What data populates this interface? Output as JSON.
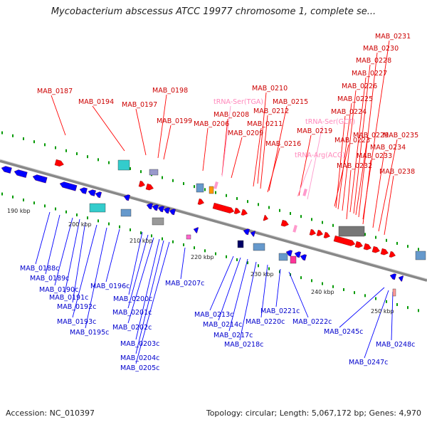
{
  "title": "Mycobacterium abscessus ATCC 19977 chromosome 1, complete se...",
  "footer": {
    "accession": "Accession: NC_010397",
    "stats": "Topology: circular; Length: 5,067,172 bp; Genes: 4,970"
  },
  "colors": {
    "forward_gene": "#ff0000",
    "reverse_gene": "#0000ff",
    "trna": "#ff99cc",
    "backbone": "#888888",
    "tick": "#009900"
  },
  "scale_ticks": [
    "190 kbp",
    "200 kbp",
    "210 kbp",
    "220 kbp",
    "230 kbp",
    "240 kbp",
    "250 kbp"
  ],
  "forward_labels": [
    "MAB_0187",
    "MAB_0194",
    "MAB_0197",
    "MAB_0198",
    "MAB_0199",
    "MAB_0206",
    "MAB_0208",
    "MAB_0209",
    "MAB_0210",
    "MAB_0211",
    "MAB_0212",
    "MAB_0215",
    "MAB_0216",
    "MAB_0219",
    "MAB_0223",
    "MAB_0224",
    "MAB_0225",
    "MAB_0226",
    "MAB_0227",
    "MAB_0228",
    "MAB_0229",
    "MAB_0230",
    "MAB_0231",
    "MAB_0232",
    "MAB_0233",
    "MAB_0234",
    "MAB_0235",
    "MAB_0238"
  ],
  "trna_labels": [
    "tRNA-Ser(TGA)",
    "tRNA-Ser(GCT)",
    "tRNA-Arg(ACG)"
  ],
  "reverse_labels": [
    "MAB_0188c",
    "MAB_0189c",
    "MAB_0190c",
    "MAB_0191c",
    "MAB_0192c",
    "MAB_0193c",
    "MAB_0195c",
    "MAB_0196c",
    "MAB_0200c",
    "MAB_0201c",
    "MAB_0202c",
    "MAB_0203c",
    "MAB_0204c",
    "MAB_0205c",
    "MAB_0207c",
    "MAB_0213c",
    "MAB_0214c",
    "MAB_0217c",
    "MAB_0218c",
    "MAB_0220c",
    "MAB_0221c",
    "MAB_0222c",
    "MAB_0245c",
    "MAB_0247c",
    "MAB_0248c"
  ]
}
